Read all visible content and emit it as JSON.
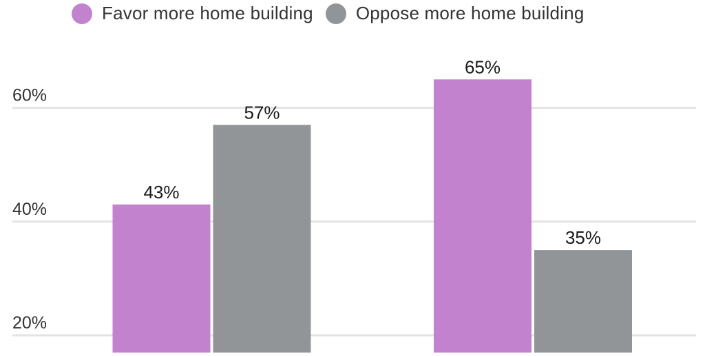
{
  "chart_data": {
    "type": "bar",
    "categories": [
      "",
      ""
    ],
    "series": [
      {
        "name": "Favor more home building",
        "values": [
          43,
          65
        ],
        "color": "#c282ce"
      },
      {
        "name": "Oppose more home building",
        "values": [
          57,
          35
        ],
        "color": "#929597"
      }
    ],
    "data_labels": [
      [
        "43%",
        "65%"
      ],
      [
        "57%",
        "35%"
      ]
    ],
    "y_ticks": [
      {
        "value": 20,
        "label": "20%"
      },
      {
        "value": 40,
        "label": "40%"
      },
      {
        "value": 60,
        "label": "60%"
      }
    ],
    "ylim": [
      15,
      70
    ],
    "grid": true,
    "legend_position": "top-left",
    "title": "",
    "xlabel": "",
    "ylabel": ""
  }
}
